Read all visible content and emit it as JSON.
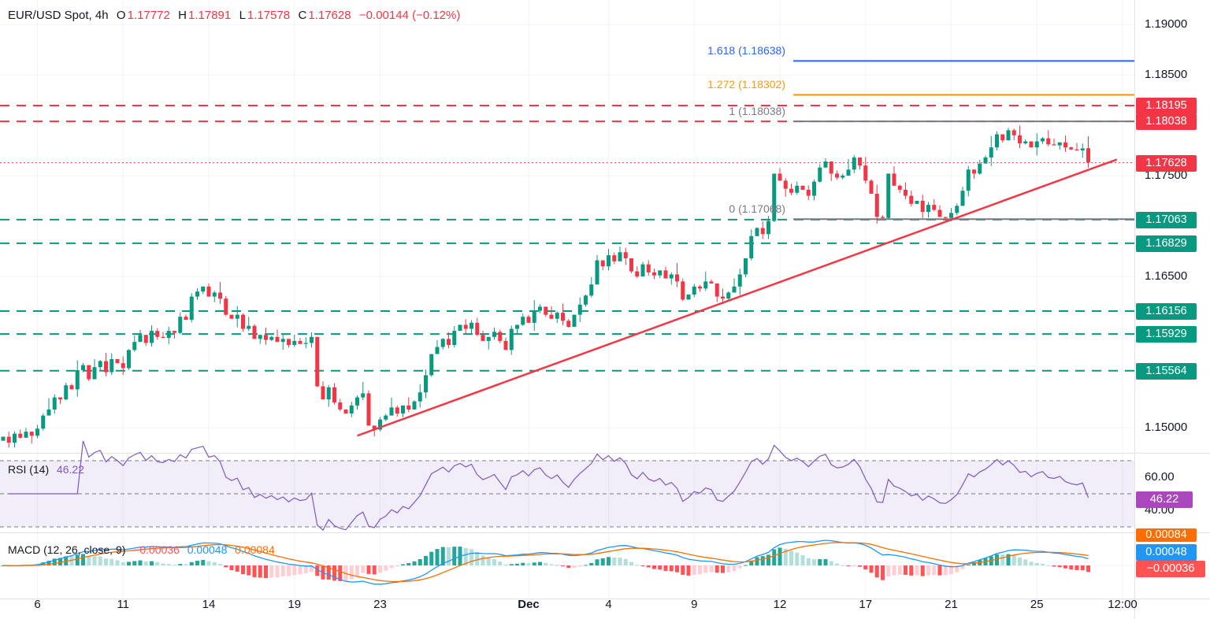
{
  "header": {
    "symbol": "EUR/USD Spot, 4h",
    "o_label": "O",
    "open": "1.17772",
    "h_label": "H",
    "high": "1.17891",
    "l_label": "L",
    "low": "1.17578",
    "c_label": "C",
    "close": "1.17628",
    "change": "−0.00144 (−0.12%)"
  },
  "colors": {
    "up": "#089981",
    "down": "#f23645",
    "support": "#089981",
    "resistance": "#f23645",
    "fib_1618": "#2962ff",
    "fib_1272": "#ff9800",
    "fib_gray": "#787b86",
    "trend": "#f23645",
    "rsi": "#7e57c2",
    "macd": "#2196f3",
    "signal": "#ff6d00"
  },
  "chart_data": {
    "type": "candlestick",
    "price_ticks": [
      "1.19000",
      "1.18500",
      "1.17500",
      "1.16500",
      "1.15000"
    ],
    "price_tick_values": [
      1.19,
      1.185,
      1.175,
      1.165,
      1.15
    ],
    "ylim": [
      1.148,
      1.1915
    ],
    "time_ticks": [
      "6",
      "11",
      "14",
      "19",
      "23",
      "Dec",
      "4",
      "9",
      "12",
      "17",
      "21",
      "25",
      "12:00"
    ],
    "time_tick_candle_index": [
      6,
      21,
      36,
      51,
      66,
      92,
      106,
      121,
      136,
      151,
      166,
      181,
      196
    ],
    "closes": [
      1.1491,
      1.1485,
      1.1494,
      1.149,
      1.1496,
      1.1492,
      1.1499,
      1.1512,
      1.1518,
      1.153,
      1.1528,
      1.1542,
      1.1538,
      1.1557,
      1.1562,
      1.1548,
      1.156,
      1.1566,
      1.1555,
      1.1568,
      1.1564,
      1.1559,
      1.1577,
      1.1585,
      1.1592,
      1.1584,
      1.1596,
      1.159,
      1.1589,
      1.1596,
      1.1594,
      1.161,
      1.1607,
      1.163,
      1.1635,
      1.164,
      1.163,
      1.1634,
      1.1628,
      1.1612,
      1.1608,
      1.1612,
      1.1598,
      1.1601,
      1.1588,
      1.1592,
      1.1587,
      1.159,
      1.1585,
      1.1588,
      1.1582,
      1.1586,
      1.1583,
      1.1584,
      1.159,
      1.1541,
      1.1528,
      1.154,
      1.1525,
      1.1518,
      1.1514,
      1.1522,
      1.153,
      1.1534,
      1.1502,
      1.1498,
      1.1508,
      1.1512,
      1.152,
      1.1514,
      1.1522,
      1.1518,
      1.1526,
      1.1535,
      1.1552,
      1.1573,
      1.158,
      1.1588,
      1.1582,
      1.1596,
      1.1602,
      1.1598,
      1.1604,
      1.1592,
      1.1586,
      1.159,
      1.1595,
      1.1586,
      1.1577,
      1.1598,
      1.1602,
      1.161,
      1.1604,
      1.1616,
      1.162,
      1.1612,
      1.1608,
      1.1614,
      1.1606,
      1.16,
      1.1612,
      1.1622,
      1.1631,
      1.1642,
      1.1666,
      1.166,
      1.1671,
      1.1665,
      1.1674,
      1.1668,
      1.1655,
      1.165,
      1.1662,
      1.1654,
      1.1651,
      1.1656,
      1.1648,
      1.1652,
      1.1645,
      1.1627,
      1.1632,
      1.164,
      1.1638,
      1.1645,
      1.1643,
      1.163,
      1.1628,
      1.1634,
      1.164,
      1.1652,
      1.1668,
      1.169,
      1.1698,
      1.1692,
      1.1705,
      1.1752,
      1.1745,
      1.1737,
      1.1733,
      1.174,
      1.1736,
      1.173,
      1.1744,
      1.1758,
      1.1764,
      1.1752,
      1.1748,
      1.175,
      1.1756,
      1.1768,
      1.176,
      1.1745,
      1.1732,
      1.1709,
      1.1708,
      1.1752,
      1.174,
      1.1736,
      1.173,
      1.1722,
      1.1725,
      1.1714,
      1.1721,
      1.1716,
      1.1709,
      1.1708,
      1.1713,
      1.172,
      1.1735,
      1.1756,
      1.1752,
      1.1762,
      1.1768,
      1.1778,
      1.1791,
      1.1785,
      1.1795,
      1.179,
      1.1782,
      1.1784,
      1.1778,
      1.1784,
      1.1787,
      1.1781,
      1.178,
      1.1783,
      1.1778,
      1.1776,
      1.1775,
      1.1777,
      1.1763
    ],
    "last_candle": {
      "open": 1.17772,
      "high": 1.17891,
      "low": 1.17578,
      "close": 1.17628
    },
    "resistance_levels": [
      {
        "value": 1.18195,
        "label": "1.18195"
      },
      {
        "value": 1.18038,
        "label": "1.18038"
      }
    ],
    "support_levels": [
      {
        "value": 1.17063,
        "label": "1.17063"
      },
      {
        "value": 1.16829,
        "label": "1.16829"
      },
      {
        "value": 1.16156,
        "label": "1.16156"
      },
      {
        "value": 1.15929,
        "label": "1.15929"
      },
      {
        "value": 1.15564,
        "label": "1.15564"
      }
    ],
    "current_price": {
      "value": 1.17628,
      "label": "1.17628"
    },
    "fibonacci": [
      {
        "level": "1.618",
        "value": 1.18638,
        "label": "1.618 (1.18638)",
        "color": "#2962ff"
      },
      {
        "level": "1.272",
        "value": 1.18302,
        "label": "1.272 (1.18302)",
        "color": "#ff9800"
      },
      {
        "level": "1",
        "value": 1.18038,
        "label": "1 (1.18038)",
        "color": "#787b86"
      },
      {
        "level": "0",
        "value": 1.17068,
        "label": "0 (1.17068)",
        "color": "#787b86"
      }
    ],
    "trendline": {
      "from": {
        "candle_index": 62,
        "price": 1.1492
      },
      "to": {
        "candle_index": 195,
        "price": 1.1766
      }
    },
    "rsi": {
      "title": "RSI (14)",
      "value": "46.22",
      "ticks": [
        "60.00",
        "40.00"
      ],
      "bands": [
        70,
        50,
        30
      ]
    },
    "macd": {
      "title": "MACD (12, 26, close, 9)",
      "histogram": "−0.00036",
      "macd": "0.00048",
      "signal": "0.00084"
    }
  }
}
